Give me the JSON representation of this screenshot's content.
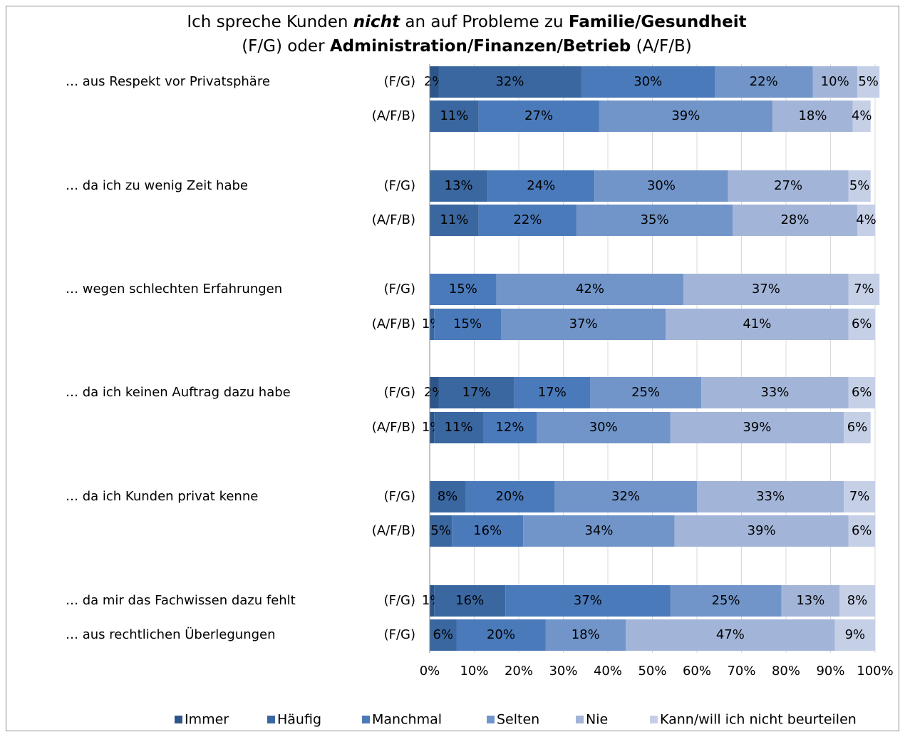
{
  "chart_data": {
    "type": "stacked-bar-horizontal",
    "title_lines": [
      [
        {
          "text": "Ich spreche Kunden "
        },
        {
          "text": "nicht",
          "bold": true,
          "italic": true
        },
        {
          "text": " an auf Probleme zu "
        },
        {
          "text": "Familie/Gesundheit",
          "bold": true
        }
      ],
      [
        {
          "text": "(F/G) oder "
        },
        {
          "text": "Administration/Finanzen/Betrieb",
          "bold": true
        },
        {
          "text": " (A/F/B)"
        }
      ]
    ],
    "group_labels": [
      "… aus Respekt vor Privatsphäre",
      null,
      "… da ich zu wenig Zeit habe",
      null,
      "… wegen schlechten Erfahrungen",
      null,
      "… da ich keinen Auftrag dazu habe",
      null,
      "… da ich Kunden privat kenne",
      null,
      "… da mir das Fachwissen dazu fehlt",
      "… aus rechtlichen Überlegungen"
    ],
    "categories": [
      "(F/G)",
      "(A/F/B)",
      "(F/G)",
      "(A/F/B)",
      "(F/G)",
      "(A/F/B)",
      "(F/G)",
      "(A/F/B)",
      "(F/G)",
      "(A/F/B)",
      "(F/G)",
      "(F/G)"
    ],
    "series": [
      {
        "name": "Immer",
        "color": "#2c5689",
        "label_color": "#ffffff",
        "values": [
          2,
          0,
          0,
          0,
          0,
          0,
          2,
          1,
          0,
          0,
          1,
          0
        ],
        "value_labels": [
          "2%",
          null,
          null,
          null,
          null,
          null,
          "2%",
          "1%",
          null,
          null,
          "1%",
          null
        ]
      },
      {
        "name": "Häufig",
        "color": "#3a67a0",
        "label_color": "#ffffff",
        "values": [
          32,
          11,
          13,
          11,
          0,
          1,
          17,
          11,
          8,
          5,
          16,
          6
        ],
        "value_labels": [
          "32%",
          "11%",
          "13%",
          "11%",
          null,
          "1%",
          "17%",
          "11%",
          "8%",
          "5%",
          "16%",
          "6%"
        ]
      },
      {
        "name": "Manchmal",
        "color": "#4a7aba",
        "label_color": "#111111",
        "values": [
          30,
          27,
          24,
          22,
          15,
          15,
          17,
          12,
          20,
          16,
          37,
          20
        ],
        "value_labels": [
          "30%",
          "27%",
          "24%",
          "22%",
          "15%",
          "15%",
          "17%",
          "12%",
          "20%",
          "16%",
          "37%",
          "20%"
        ]
      },
      {
        "name": "Selten",
        "color": "#7195c9",
        "label_color": "#111111",
        "values": [
          22,
          39,
          30,
          35,
          42,
          37,
          25,
          30,
          32,
          34,
          25,
          18
        ],
        "value_labels": [
          "22%",
          "39%",
          "30%",
          "35%",
          "42%",
          "37%",
          "25%",
          "30%",
          "32%",
          "34%",
          "25%",
          "18%"
        ]
      },
      {
        "name": "Nie",
        "color": "#a2b5d8",
        "label_color": "#111111",
        "values": [
          10,
          18,
          27,
          28,
          37,
          41,
          33,
          39,
          33,
          39,
          13,
          47
        ],
        "value_labels": [
          "10%",
          "18%",
          "27%",
          "28%",
          "37%",
          "41%",
          "33%",
          "39%",
          "33%",
          "39%",
          "13%",
          "47%"
        ]
      },
      {
        "name": "Kann/will ich nicht beurteilen",
        "color": "#c5d0e7",
        "label_color": "#111111",
        "values": [
          5,
          4,
          5,
          4,
          7,
          6,
          6,
          6,
          7,
          6,
          8,
          9
        ],
        "value_labels": [
          "5%",
          "4%",
          "5%",
          "4%",
          "7%",
          "6%",
          "6%",
          "6%",
          "7%",
          "6%",
          "8%",
          "9%"
        ]
      }
    ],
    "xlim": [
      0,
      100
    ],
    "xticks": [
      {
        "value": 0,
        "label": "0%"
      },
      {
        "value": 10,
        "label": "10%"
      },
      {
        "value": 20,
        "label": "20%"
      },
      {
        "value": 30,
        "label": "30%"
      },
      {
        "value": 40,
        "label": "40%"
      },
      {
        "value": 50,
        "label": "50%"
      },
      {
        "value": 60,
        "label": "60%"
      },
      {
        "value": 70,
        "label": "70%"
      },
      {
        "value": 80,
        "label": "80%"
      },
      {
        "value": 90,
        "label": "90%"
      },
      {
        "value": 100,
        "label": "100%"
      }
    ],
    "grid": true,
    "legend": "bottom"
  }
}
